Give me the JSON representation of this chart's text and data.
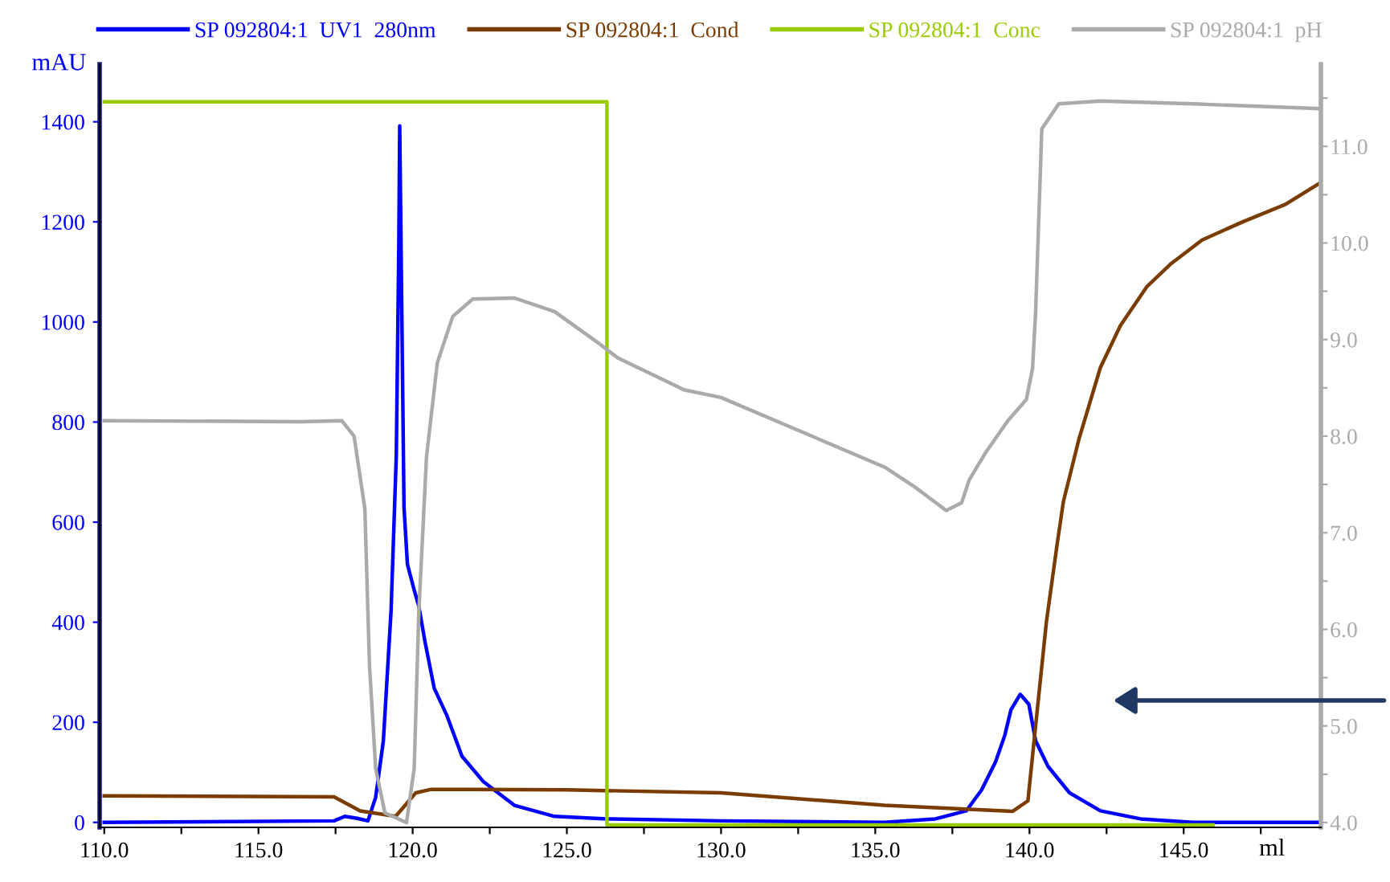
{
  "chart_data": {
    "type": "line",
    "xlabel": "ml",
    "ylabel": "mAU",
    "xlim": [
      109.85,
      149.45
    ],
    "xticks": [
      {
        "value": 110,
        "label": "110.0"
      },
      {
        "value": 112.5,
        "label": null
      },
      {
        "value": 115,
        "label": "115.0"
      },
      {
        "value": 117.5,
        "label": null
      },
      {
        "value": 120,
        "label": "120.0"
      },
      {
        "value": 122.5,
        "label": null
      },
      {
        "value": 125,
        "label": "125.0"
      },
      {
        "value": 127.5,
        "label": null
      },
      {
        "value": 130,
        "label": "130.0"
      },
      {
        "value": 132.5,
        "label": null
      },
      {
        "value": 135,
        "label": "135.0"
      },
      {
        "value": 137.5,
        "label": null
      },
      {
        "value": 140,
        "label": "140.0"
      },
      {
        "value": 142.5,
        "label": null
      },
      {
        "value": 145,
        "label": "145.0"
      },
      {
        "value": 147.5,
        "label": null
      }
    ],
    "ylim": [
      -10,
      1515
    ],
    "yticks": [
      0,
      200,
      400,
      600,
      800,
      1000,
      1200,
      1400
    ],
    "y2lim": [
      3.95,
      11.85
    ],
    "y2ticks": [
      {
        "value": 4,
        "label": "4.0"
      },
      {
        "value": 4.5,
        "label": null
      },
      {
        "value": 5,
        "label": "5.0"
      },
      {
        "value": 5.5,
        "label": null
      },
      {
        "value": 6,
        "label": "6.0"
      },
      {
        "value": 6.5,
        "label": null
      },
      {
        "value": 7,
        "label": "7.0"
      },
      {
        "value": 7.5,
        "label": null
      },
      {
        "value": 8,
        "label": "8.0"
      },
      {
        "value": 8.5,
        "label": null
      },
      {
        "value": 9,
        "label": "9.0"
      },
      {
        "value": 9.5,
        "label": null
      },
      {
        "value": 10,
        "label": "10.0"
      },
      {
        "value": 10.5,
        "label": null
      },
      {
        "value": 11,
        "label": "11.0"
      },
      {
        "value": 11.5,
        "label": null
      }
    ],
    "grid": false,
    "legend": "top",
    "marker": "none",
    "line_style": "solid",
    "series": [
      {
        "name": "SP 092804:1  UV1  280nm",
        "color": "#0000ff",
        "x": [
          110,
          117.45,
          117.8,
          118.2,
          118.55,
          118.8,
          119.05,
          119.3,
          119.47,
          119.55,
          119.58,
          119.72,
          119.83,
          120.05,
          120.2,
          120.4,
          120.7,
          121.1,
          121.6,
          122.3,
          123.3,
          124.6,
          126.3,
          130,
          135.3,
          136.95,
          137.95,
          138.45,
          138.9,
          139.2,
          139.4,
          139.7,
          139.98,
          140.2,
          140.6,
          141.3,
          142.3,
          143.6,
          145.3,
          149.45
        ],
        "values": [
          0,
          3,
          12,
          8,
          3,
          50,
          163,
          423,
          734,
          1148,
          1392,
          629,
          516,
          464,
          432,
          361,
          268,
          215,
          132,
          81,
          34,
          12,
          7,
          3,
          0,
          7,
          23,
          65,
          121,
          174,
          225,
          256,
          236,
          163,
          112,
          59,
          23,
          7,
          0,
          0
        ]
      },
      {
        "name": "SP 092804:1  Cond",
        "color": "#7a3c00",
        "x": [
          110,
          117.45,
          118.3,
          119.45,
          120.1,
          120.6,
          121.8,
          125,
          130,
          135.3,
          139.45,
          139.95,
          140.2,
          140.55,
          140.9,
          141.1,
          141.6,
          142.3,
          142.95,
          143.8,
          144.6,
          145.6,
          146.95,
          148.3,
          149.45
        ],
        "values": [
          53,
          51,
          23,
          12,
          59,
          66,
          66,
          65,
          59,
          34,
          22,
          43,
          193,
          401,
          557,
          641,
          765,
          909,
          993,
          1070,
          1117,
          1164,
          1201,
          1235,
          1279
        ]
      },
      {
        "name": "SP 092804:1  Conc",
        "color": "#99cc00",
        "x": [
          110,
          126.3,
          126.3,
          145.95
        ],
        "values": [
          1440,
          1440,
          -5,
          -5
        ]
      },
      {
        "name": "SP 092804:1  pH",
        "color": "#aaaaaa",
        "axis": "y2",
        "x": [
          110,
          116.35,
          117.7,
          118.1,
          118.45,
          118.6,
          118.8,
          119.1,
          119.8,
          120.05,
          120.2,
          120.45,
          120.8,
          121.3,
          121.95,
          123.3,
          124.6,
          126.0,
          126.65,
          128.8,
          130,
          135.3,
          136.3,
          137.3,
          137.8,
          138.05,
          138.6,
          139.3,
          139.9,
          140.1,
          140.2,
          140.4,
          140.95,
          142.3,
          145.3,
          149.45
        ],
        "values": [
          8.16,
          8.15,
          8.16,
          8.0,
          7.25,
          5.63,
          4.56,
          4.1,
          4.0,
          4.56,
          6.18,
          7.79,
          8.76,
          9.24,
          9.42,
          9.43,
          9.29,
          8.97,
          8.81,
          8.48,
          8.4,
          7.68,
          7.47,
          7.23,
          7.31,
          7.55,
          7.84,
          8.16,
          8.38,
          8.7,
          9.29,
          11.18,
          11.44,
          11.47,
          11.44,
          11.39
        ]
      }
    ]
  }
}
